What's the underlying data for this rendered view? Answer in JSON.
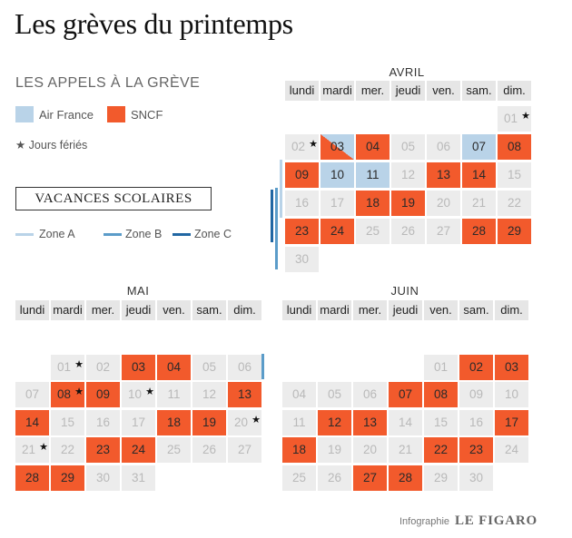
{
  "title": "Les grèves du printemps",
  "subtitle": "LES APPELS À LA GRÈVE",
  "legend": {
    "air_france": "Air France",
    "sncf": "SNCF",
    "holidays": "★ Jours fériés",
    "colors": {
      "air_france": "#b9d3e8",
      "sncf": "#f25a2c",
      "none": "#ececec"
    }
  },
  "vacances": {
    "title": "VACANCES SCOLAIRES",
    "zone_a": "Zone A",
    "zone_b": "Zone B",
    "zone_c": "Zone C",
    "colors": {
      "zone_a": "#b9d3e8",
      "zone_b": "#5b9cc9",
      "zone_c": "#2167a3"
    }
  },
  "weekdays": [
    "lundi",
    "mardi",
    "mer.",
    "jeudi",
    "ven.",
    "sam.",
    "dim."
  ],
  "months": [
    {
      "name": "AVRIL",
      "start_offset": 6,
      "days": 30,
      "sncf": [
        3,
        4,
        8,
        9,
        13,
        14,
        18,
        19,
        23,
        24,
        28,
        29
      ],
      "air_france": [
        3,
        7,
        10,
        11
      ],
      "holidays": [
        1,
        2
      ]
    },
    {
      "name": "MAI",
      "start_offset": 1,
      "days": 31,
      "sncf": [
        3,
        4,
        8,
        9,
        13,
        14,
        18,
        19,
        23,
        24,
        28,
        29
      ],
      "air_france": [],
      "holidays": [
        1,
        8,
        10,
        20,
        21
      ]
    },
    {
      "name": "JUIN",
      "start_offset": 4,
      "days": 30,
      "sncf": [
        2,
        3,
        7,
        8,
        12,
        13,
        17,
        18,
        22,
        23,
        27,
        28
      ],
      "air_france": [],
      "holidays": []
    }
  ],
  "credit": "Infographie",
  "brand": "LE FIGARO"
}
